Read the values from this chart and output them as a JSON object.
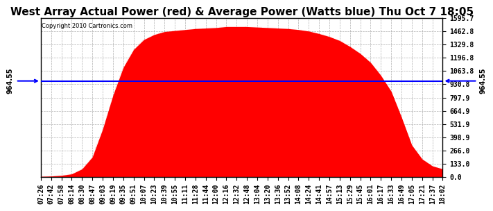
{
  "title": "West Array Actual Power (red) & Average Power (Watts blue) Thu Oct 7 18:05",
  "copyright": "Copyright 2010 Cartronics.com",
  "average_power": 964.55,
  "y_max": 1595.7,
  "y_min": 0.0,
  "y_ticks": [
    0.0,
    133.0,
    266.0,
    398.9,
    531.9,
    664.9,
    797.9,
    930.8,
    1063.8,
    1196.8,
    1329.8,
    1462.8,
    1595.7
  ],
  "x_labels": [
    "07:26",
    "07:42",
    "07:58",
    "08:14",
    "08:30",
    "08:47",
    "09:03",
    "09:19",
    "09:35",
    "09:51",
    "10:07",
    "10:23",
    "10:39",
    "10:55",
    "11:11",
    "11:28",
    "11:44",
    "12:00",
    "12:16",
    "12:32",
    "12:48",
    "13:04",
    "13:20",
    "13:36",
    "13:52",
    "14:08",
    "14:24",
    "14:41",
    "14:57",
    "15:13",
    "15:29",
    "15:45",
    "16:01",
    "16:17",
    "16:33",
    "16:49",
    "17:05",
    "17:21",
    "17:37",
    "18:02"
  ],
  "background_color": "#ffffff",
  "fill_color": "#ff0000",
  "line_color": "#0000ff",
  "grid_color": "#b0b0b0",
  "title_fontsize": 11,
  "label_fontsize": 7,
  "avg_label": "964.55",
  "power_values": [
    5,
    8,
    15,
    30,
    80,
    200,
    480,
    820,
    1100,
    1280,
    1380,
    1430,
    1460,
    1470,
    1480,
    1490,
    1495,
    1500,
    1510,
    1510,
    1510,
    1505,
    1500,
    1495,
    1490,
    1480,
    1465,
    1440,
    1410,
    1370,
    1310,
    1240,
    1150,
    1020,
    860,
    600,
    320,
    180,
    110,
    80
  ]
}
